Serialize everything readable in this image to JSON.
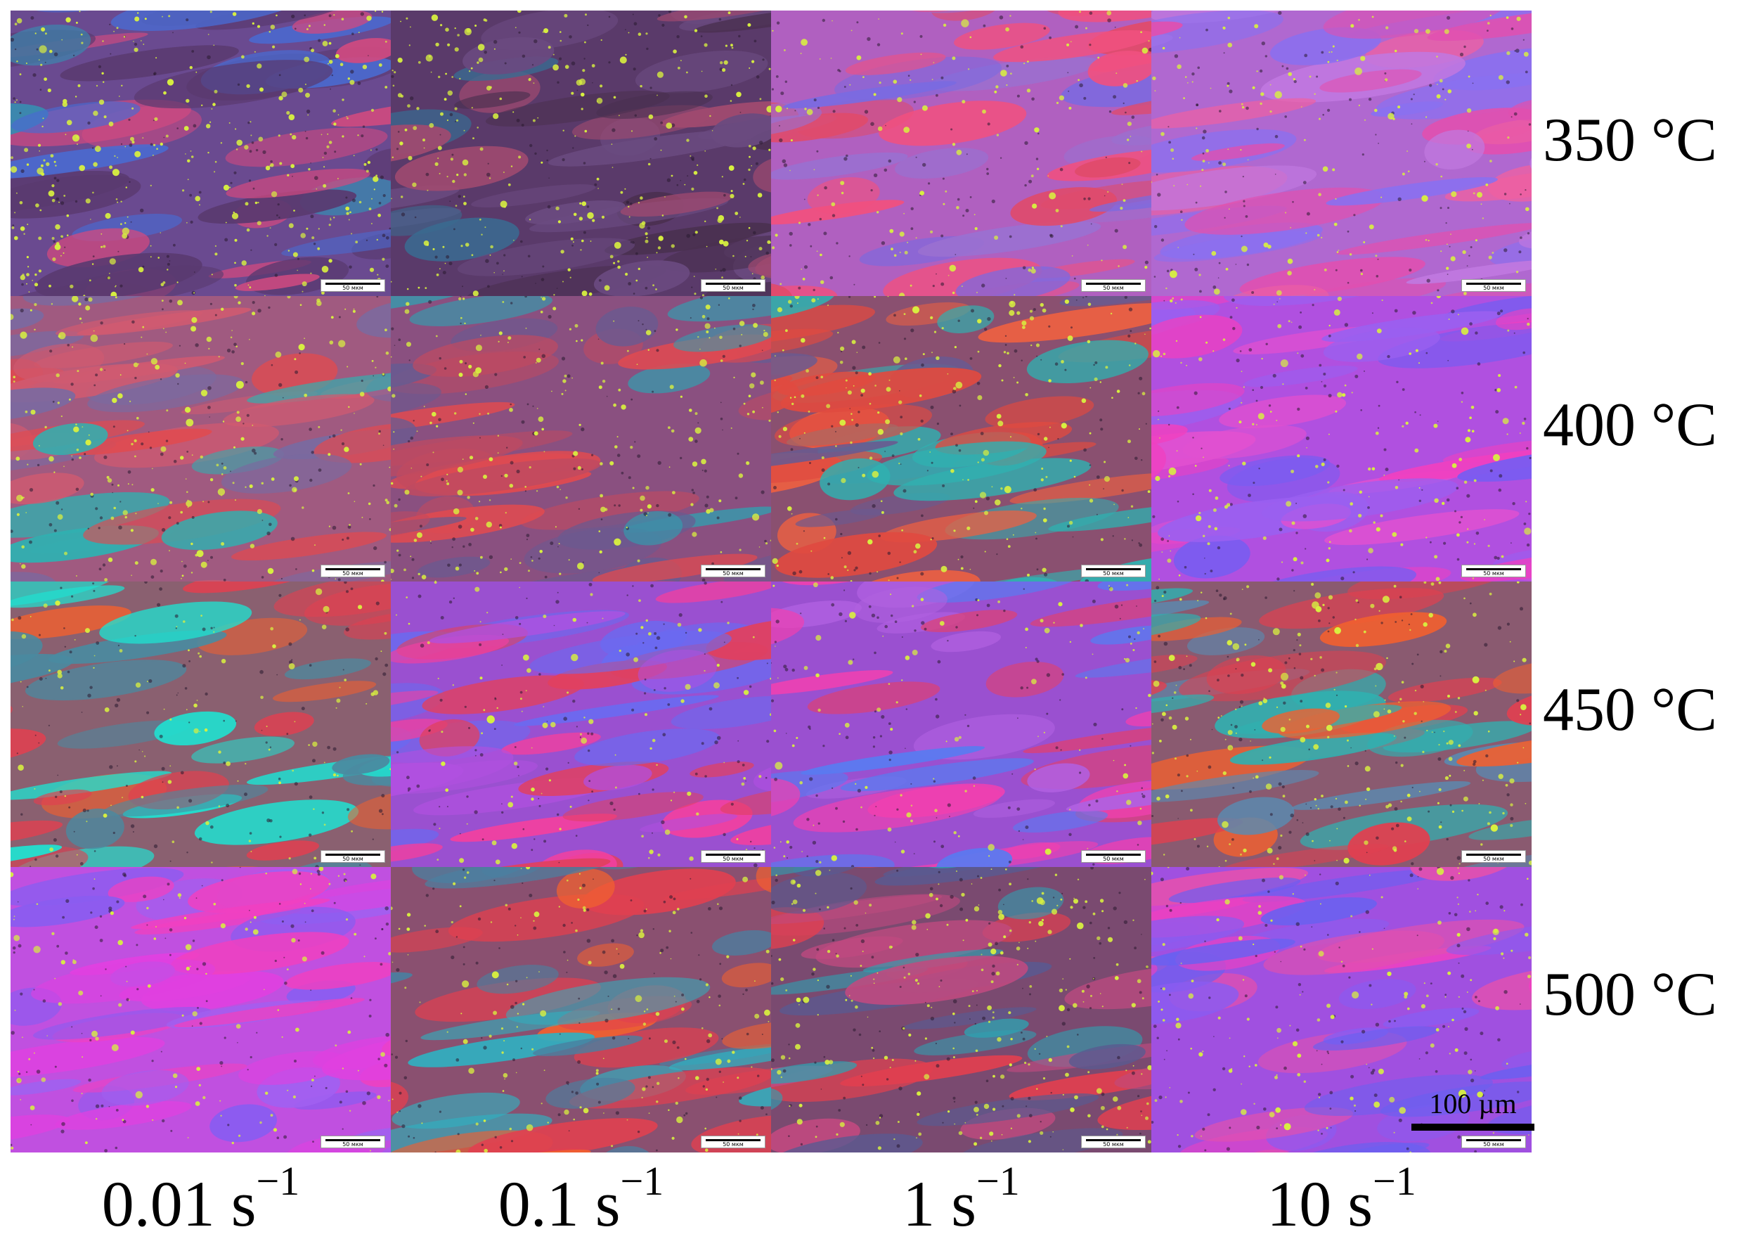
{
  "row_labels": [
    "350 °C",
    "400 °C",
    "450 °C",
    "500 °C"
  ],
  "col_labels": [
    {
      "base": "0.01 s",
      "exp": "−1"
    },
    {
      "base": "0.1 s",
      "exp": "−1"
    },
    {
      "base": "1 s",
      "exp": "−1"
    },
    {
      "base": "10 s",
      "exp": "−1"
    }
  ],
  "tile_scale_text": "50 мкм",
  "scale_bar_label": "100 µm",
  "colors": {
    "magenta": "#e040d0",
    "violet": "#7a5cf0",
    "red": "#e04060",
    "orange": "#f06030",
    "cyan": "#20d0c8",
    "teal": "#2a9aa8",
    "particle": "#d8f040"
  },
  "tiles": [
    {
      "bg": "#6a4a90",
      "palette": [
        "#4a6ad0",
        "#d04a80",
        "#5a3a70",
        "#3a8ab0"
      ],
      "particles": 0.9
    },
    {
      "bg": "#5a3a6a",
      "palette": [
        "#3a6a90",
        "#a04a70",
        "#4a3050",
        "#6a4a80"
      ],
      "particles": 0.75
    },
    {
      "bg": "#b060c0",
      "palette": [
        "#f05080",
        "#7a6ae0",
        "#e04a6a",
        "#9a70d0"
      ],
      "particles": 0.35
    },
    {
      "bg": "#b068d0",
      "palette": [
        "#e050b0",
        "#8a70f0",
        "#f060a0",
        "#c078e0"
      ],
      "particles": 0.4
    },
    {
      "bg": "#a05a80",
      "palette": [
        "#e04a50",
        "#30b0b0",
        "#7a6aa0",
        "#d05a70"
      ],
      "particles": 0.55
    },
    {
      "bg": "#8a5080",
      "palette": [
        "#e04a50",
        "#30a0b0",
        "#6a5a90",
        "#c04a60"
      ],
      "particles": 0.55
    },
    {
      "bg": "#8a5070",
      "palette": [
        "#e04a40",
        "#30b0b0",
        "#6a5a90",
        "#f06040"
      ],
      "particles": 0.5
    },
    {
      "bg": "#b050e0",
      "palette": [
        "#f040c0",
        "#7a5cf0",
        "#e050d0",
        "#9a60f0"
      ],
      "particles": 0.4
    },
    {
      "bg": "#8a6070",
      "palette": [
        "#20e0d0",
        "#f06030",
        "#e04050",
        "#4a8aa0"
      ],
      "particles": 0.25
    },
    {
      "bg": "#9a50d0",
      "palette": [
        "#f040a0",
        "#6a6af0",
        "#e04060",
        "#b050e0"
      ],
      "particles": 0.25
    },
    {
      "bg": "#9a50d0",
      "palette": [
        "#f040b0",
        "#5a7af0",
        "#e04070",
        "#b060e0"
      ],
      "particles": 0.25
    },
    {
      "bg": "#8a5a70",
      "palette": [
        "#f06030",
        "#30b0b0",
        "#e04050",
        "#5a8ab0"
      ],
      "particles": 0.55
    },
    {
      "bg": "#c050e0",
      "palette": [
        "#f040c0",
        "#8a5cf0",
        "#e040e0",
        "#a060f0"
      ],
      "particles": 0.3
    },
    {
      "bg": "#8a5070",
      "palette": [
        "#f06030",
        "#30b0c0",
        "#e04050",
        "#4a80a0"
      ],
      "particles": 0.35
    },
    {
      "bg": "#7a4a70",
      "palette": [
        "#e04050",
        "#30a0b0",
        "#5a5a90",
        "#c04a80"
      ],
      "particles": 0.6
    },
    {
      "bg": "#a050e0",
      "palette": [
        "#f040c0",
        "#6a60f0",
        "#e050b0",
        "#8a5cf0"
      ],
      "particles": 0.35
    }
  ]
}
